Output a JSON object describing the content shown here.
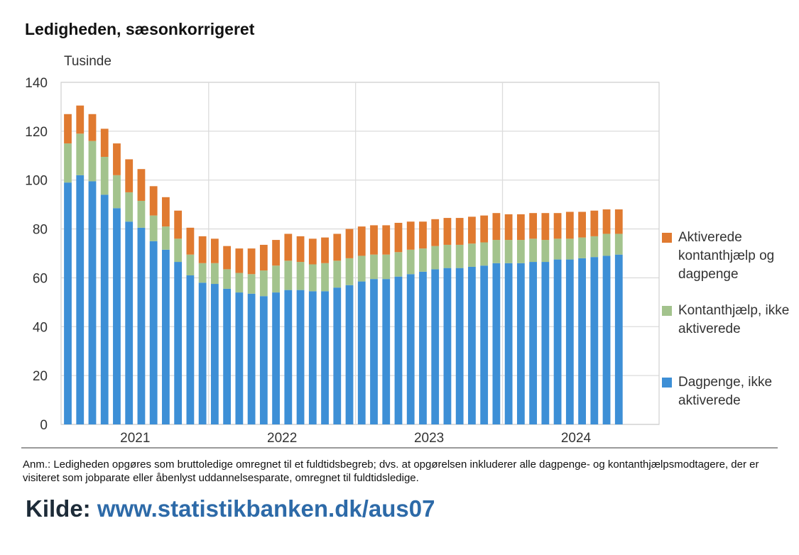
{
  "title": "Ledigheden, sæsonkorrigeret",
  "unit_label": "Tusinde",
  "chart_data": {
    "type": "bar",
    "stacked": true,
    "ylim": [
      0,
      140
    ],
    "yticks": [
      "0",
      "20",
      "40",
      "60",
      "80",
      "100",
      "120",
      "140"
    ],
    "year_labels": [
      "2021",
      "2022",
      "2023",
      "2024"
    ],
    "grid": true,
    "legend_position": "right",
    "series": [
      {
        "name": "Dagpenge, ikke aktiverede",
        "color": "#3d8fd6",
        "values": [
          99,
          102,
          99.5,
          94,
          88.5,
          83,
          80.5,
          75,
          71.5,
          66.5,
          61,
          58,
          57.5,
          55.5,
          54,
          53.5,
          52.5,
          54,
          55,
          55,
          54.5,
          54.5,
          56,
          57,
          58.5,
          59.5,
          59.5,
          60.5,
          61.5,
          62.5,
          63.5,
          64,
          64,
          64.5,
          65,
          66,
          66,
          66,
          66.5,
          66.5,
          67.5,
          67.5,
          68,
          68.5,
          69,
          69.5
        ]
      },
      {
        "name": "Kontanthjælp, ikke aktiverede",
        "color": "#a3c38d",
        "values": [
          16,
          17,
          16.5,
          15.5,
          13.5,
          12,
          11,
          10.5,
          9.5,
          9.5,
          8.5,
          8,
          8.5,
          8,
          8,
          8,
          10.5,
          11,
          12,
          11.5,
          11,
          11.5,
          11,
          11,
          10.5,
          10,
          10,
          10,
          10,
          9.5,
          9.5,
          9.5,
          9.5,
          9.5,
          9.5,
          9.5,
          9.5,
          9.5,
          9.5,
          9,
          8.5,
          8.5,
          8.5,
          8.5,
          9,
          8.5
        ]
      },
      {
        "name": "Aktiverede kontanthjælp og dagpenge",
        "color": "#e07a30",
        "values": [
          12,
          11.5,
          11,
          11.5,
          13,
          13.5,
          13,
          12,
          12,
          11.5,
          11,
          11,
          10,
          9.5,
          10,
          10.5,
          10.5,
          10.5,
          11,
          10.5,
          10.5,
          10.5,
          11,
          12,
          12,
          12,
          12,
          12,
          11.5,
          11,
          11,
          11,
          11,
          11,
          11,
          11,
          10.5,
          10.5,
          10.5,
          11,
          10.5,
          11,
          10.5,
          10.5,
          10,
          10
        ]
      }
    ]
  },
  "legend": [
    {
      "label": "Aktiverede kontanthjælp og dagpenge",
      "color": "#e07a30"
    },
    {
      "label": "Kontanthjælp, ikke aktiverede",
      "color": "#a3c38d"
    },
    {
      "label": "Dagpenge, ikke aktiverede",
      "color": "#3d8fd6"
    }
  ],
  "note": "Anm.: Ledigheden opgøres som bruttoledige omregnet til et fuldtidsbegreb; dvs. at opgørelsen inkluderer alle dagpenge- og kontanthjælpsmodtagere, der er visiteret som jobparate eller åbenlyst uddannelsesparate, omregnet til fuldtidsledige.",
  "source": {
    "label": "Kilde:",
    "link": "www.statistikbanken.dk/aus07"
  }
}
